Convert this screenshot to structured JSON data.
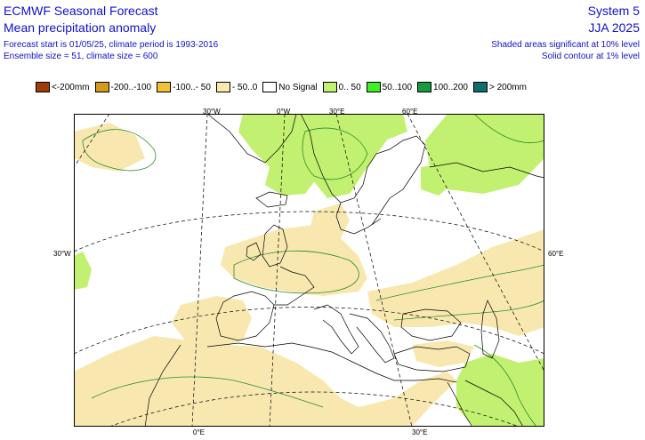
{
  "header": {
    "title": "ECMWF Seasonal Forecast",
    "subtitle": "Mean precipitation anomaly",
    "forecast_info": "Forecast start is 01/05/25, climate period is 1993-2016",
    "ensemble_info": "Ensemble size = 51, climate size = 600",
    "system": "System 5",
    "season": "JJA 2025",
    "significance_shaded": "Shaded areas significant at 10% level",
    "significance_contour": "Solid contour at 1% level"
  },
  "legend": [
    {
      "label": "<-200mm",
      "color": "#a03c0a"
    },
    {
      "label": "-200..-100",
      "color": "#d49a1e"
    },
    {
      "label": "-100..- 50",
      "color": "#f2c235"
    },
    {
      "label": "- 50..0",
      "color": "#f8e8b0"
    },
    {
      "label": "No Signal",
      "color": "#ffffff"
    },
    {
      "label": "0.. 50",
      "color": "#c2f070"
    },
    {
      "label": "50..100",
      "color": "#40ee28"
    },
    {
      "label": "100..200",
      "color": "#1a9a40"
    },
    {
      "label": "> 200mm",
      "color": "#106e6a"
    }
  ],
  "map": {
    "graticule_labels": {
      "top_30w": "30°W",
      "top_0": "0°W",
      "top_30e": "30°E",
      "top_60e": "60°E",
      "left_30w": "30°W",
      "right_60e": "60°E",
      "bottom_0": "0°E",
      "bottom_30e": "30°E"
    },
    "colors": {
      "coast": "#000000",
      "contour": "#2a8a2a",
      "grid": "#000000"
    }
  }
}
